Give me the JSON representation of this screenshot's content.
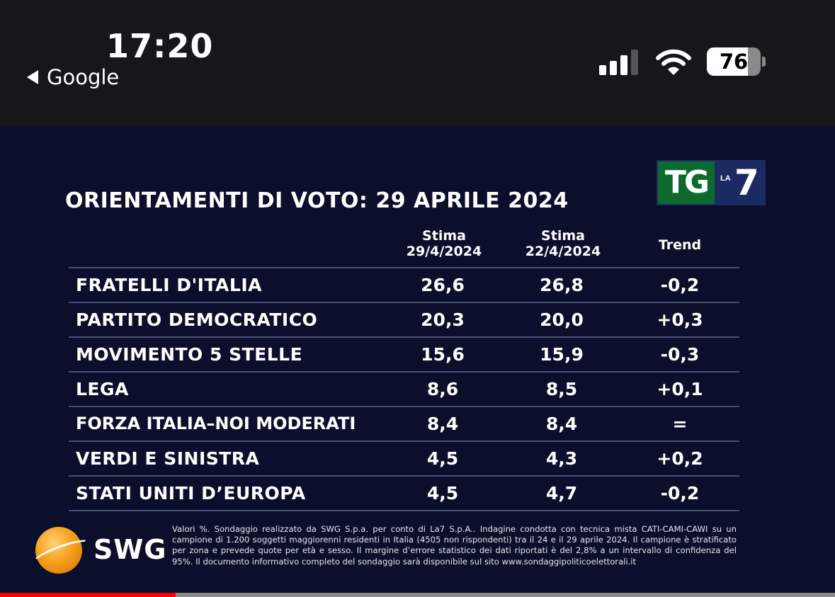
{
  "status_bar": {
    "time": "17:20",
    "back_label": "Google",
    "signal_bars": 3,
    "battery_percent": "76"
  },
  "logo": {
    "main": "TG",
    "small": "LA",
    "number": "7"
  },
  "title": "ORIENTAMENTI DI VOTO: 29 APRILE 2024",
  "columns": [
    {
      "label": "Stima",
      "date": "29/4/2024"
    },
    {
      "label": "Stima",
      "date": "22/4/2024"
    },
    {
      "label": "Trend"
    }
  ],
  "rows": [
    {
      "party": "FRATELLI D'ITALIA",
      "a": "26,6",
      "b": "26,8",
      "trend": "-0,2"
    },
    {
      "party": "PARTITO DEMOCRATICO",
      "a": "20,3",
      "b": "20,0",
      "trend": "+0,3"
    },
    {
      "party": "MOVIMENTO 5 STELLE",
      "a": "15,6",
      "b": "15,9",
      "trend": "-0,3"
    },
    {
      "party": "LEGA",
      "a": "8,6",
      "b": "8,5",
      "trend": "+0,1"
    },
    {
      "party": "FORZA ITALIA–NOI MODERATI",
      "a": "8,4",
      "b": "8,4",
      "trend": "="
    },
    {
      "party": "VERDI E SINISTRA",
      "a": "4,5",
      "b": "4,3",
      "trend": "+0,2"
    },
    {
      "party": "STATI UNITI D’EUROPA",
      "a": "4,5",
      "b": "4,7",
      "trend": "-0,2"
    }
  ],
  "source_logo": "SWG",
  "disclaimer": "Valori %. Sondaggio realizzato da SWG S.p.a. per conto di La7 S.p.A.. Indagine condotta con tecnica mista CATI-CAMI-CAWI su un campione di 1.200 soggetti maggiorenni residenti in Italia (4505 non rispondenti) tra il 24 e il 29 aprile 2024. Il campione è stratificato per zona e prevede quote per età e sesso. Il margine d’errore statistico dei dati riportati è del 2,8% a un intervallo di confidenza del 95%. Il documento informativo completo del sondaggio sarà disponibile sul sito www.sondaggipoliticoelettorali.it",
  "video_progress_fraction": 0.21,
  "colors": {
    "panel_bg": "#0b0f2b",
    "logo_green": "#0d6a2d",
    "progress_red": "#ff0000"
  }
}
